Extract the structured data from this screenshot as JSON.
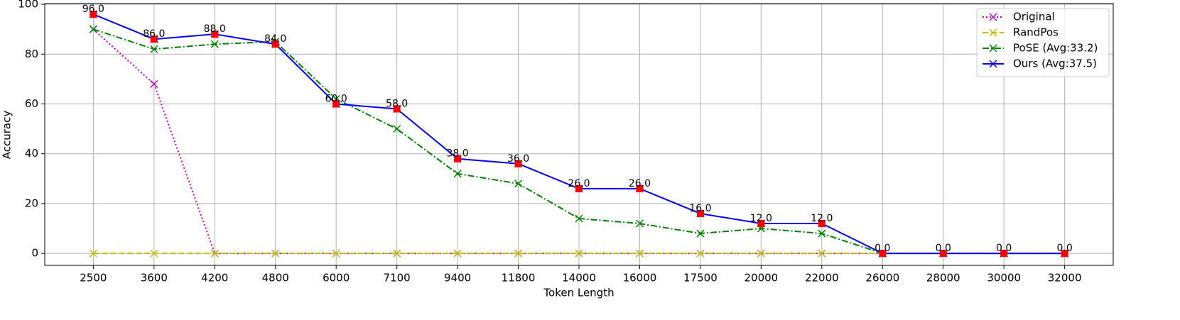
{
  "chart_data": {
    "type": "line",
    "xlabel": "Token Length",
    "ylabel": "Accuracy",
    "categories": [
      "2500",
      "3600",
      "4200",
      "4800",
      "6000",
      "7100",
      "9400",
      "11800",
      "14000",
      "16000",
      "17500",
      "20000",
      "22000",
      "26000",
      "28000",
      "30000",
      "32000"
    ],
    "series": [
      {
        "name": "Original",
        "color": "#bf00bf",
        "linestyle": "dotted",
        "marker": "x",
        "values": [
          90,
          68,
          0,
          0,
          0,
          0,
          0,
          0,
          0,
          0,
          0,
          0,
          0,
          0,
          0,
          0,
          0
        ]
      },
      {
        "name": "RandPos",
        "color": "#bfbf00",
        "linestyle": "dashed",
        "marker": "x",
        "values": [
          0,
          0,
          0,
          0,
          0,
          0,
          0,
          0,
          0,
          0,
          0,
          0,
          0,
          0,
          0,
          0,
          0
        ]
      },
      {
        "name": "PoSE (Avg:33.2)",
        "color": "#008000",
        "linestyle": "dashdot",
        "marker": "x",
        "values": [
          90,
          82,
          84,
          85,
          62,
          50,
          32,
          28,
          14,
          12,
          8,
          10,
          8,
          0,
          0,
          0,
          0
        ]
      },
      {
        "name": "Ours (Avg:37.5)",
        "color": "#0000ff",
        "linestyle": "solid",
        "marker": "x",
        "point_color": "#ff0000",
        "values": [
          96,
          86,
          88,
          84,
          60,
          58,
          38,
          36,
          26,
          26,
          16,
          12,
          12,
          0,
          0,
          0,
          0
        ],
        "value_labels": [
          "96.0",
          "86.0",
          "88.0",
          "84.0",
          "60.0",
          "58.0",
          "38.0",
          "36.0",
          "26.0",
          "26.0",
          "16.0",
          "12.0",
          "12.0",
          "0.0",
          "0.0",
          "0.0",
          "0.0"
        ]
      }
    ],
    "ylim": [
      -4.8,
      100.3
    ],
    "yticks": [
      0,
      20,
      40,
      60,
      80,
      100
    ],
    "grid": true,
    "legend": "upper right"
  }
}
